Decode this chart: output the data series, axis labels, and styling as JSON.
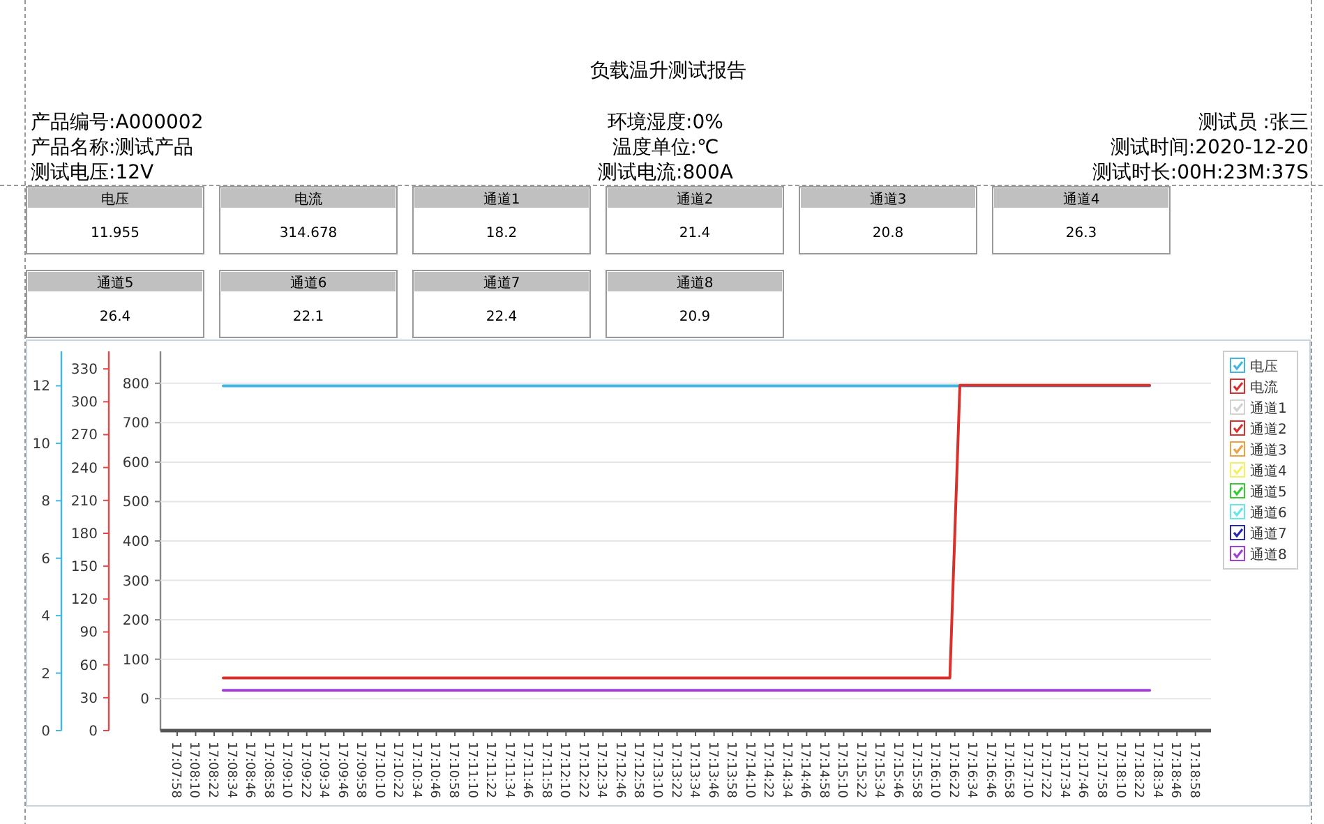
{
  "chart_data": [
    {
      "type": "other",
      "title": "负载温升测试报告",
      "annotations": [
        "产品编号:A000002",
        "环境湿度:0%",
        "测试员 :张三",
        "产品名称:测试产品",
        "温度单位:℃",
        "测试时间:2020-12-20",
        "测试电压:12V",
        "测试电流:800A",
        "测试时长:00H:23M:37S"
      ],
      "categories": [
        "电压",
        "电流",
        "通道1",
        "通道2",
        "通道3",
        "通道4",
        "通道5",
        "通道6",
        "通道7",
        "通道8"
      ],
      "values": [
        11.955,
        314.678,
        18.2,
        21.4,
        20.8,
        26.3,
        26.4,
        22.1,
        22.4,
        20.9
      ],
      "data_labels": true
    },
    {
      "type": "line",
      "legend": "top right",
      "grid": "y",
      "xlim": [
        17.12977,
        17.31891
      ],
      "xticks": [
        {
          "value": 17.13278,
          "label": "17:07:58"
        },
        {
          "value": 17.13611,
          "label": "17:08:10"
        },
        {
          "value": 17.13944,
          "label": "17:08:22"
        },
        {
          "value": 17.14278,
          "label": "17:08:34"
        },
        {
          "value": 17.14611,
          "label": "17:08:46"
        },
        {
          "value": 17.14944,
          "label": "17:08:58"
        },
        {
          "value": 17.15278,
          "label": "17:09:10"
        },
        {
          "value": 17.15611,
          "label": "17:09:22"
        },
        {
          "value": 17.15944,
          "label": "17:09:34"
        },
        {
          "value": 17.16278,
          "label": "17:09:46"
        },
        {
          "value": 17.16611,
          "label": "17:09:58"
        },
        {
          "value": 17.16944,
          "label": "17:10:10"
        },
        {
          "value": 17.17278,
          "label": "17:10:22"
        },
        {
          "value": 17.17611,
          "label": "17:10:34"
        },
        {
          "value": 17.17944,
          "label": "17:10:46"
        },
        {
          "value": 17.18278,
          "label": "17:10:58"
        },
        {
          "value": 17.18611,
          "label": "17:11:10"
        },
        {
          "value": 17.18944,
          "label": "17:11:22"
        },
        {
          "value": 17.19278,
          "label": "17:11:34"
        },
        {
          "value": 17.19611,
          "label": "17:11:46"
        },
        {
          "value": 17.19944,
          "label": "17:11:58"
        },
        {
          "value": 17.20278,
          "label": "17:12:10"
        },
        {
          "value": 17.20611,
          "label": "17:12:22"
        },
        {
          "value": 17.20944,
          "label": "17:12:34"
        },
        {
          "value": 17.21278,
          "label": "17:12:46"
        },
        {
          "value": 17.21611,
          "label": "17:12:58"
        },
        {
          "value": 17.21944,
          "label": "17:13:10"
        },
        {
          "value": 17.22278,
          "label": "17:13:22"
        },
        {
          "value": 17.22611,
          "label": "17:13:34"
        },
        {
          "value": 17.22944,
          "label": "17:13:46"
        },
        {
          "value": 17.23278,
          "label": "17:13:58"
        },
        {
          "value": 17.23611,
          "label": "17:14:10"
        },
        {
          "value": 17.23944,
          "label": "17:14:22"
        },
        {
          "value": 17.24278,
          "label": "17:14:34"
        },
        {
          "value": 17.24611,
          "label": "17:14:46"
        },
        {
          "value": 17.24944,
          "label": "17:14:58"
        },
        {
          "value": 17.25278,
          "label": "17:15:10"
        },
        {
          "value": 17.25611,
          "label": "17:15:22"
        },
        {
          "value": 17.25944,
          "label": "17:15:34"
        },
        {
          "value": 17.26278,
          "label": "17:15:46"
        },
        {
          "value": 17.26611,
          "label": "17:15:58"
        },
        {
          "value": 17.26944,
          "label": "17:16:10"
        },
        {
          "value": 17.27278,
          "label": "17:16:22"
        },
        {
          "value": 17.27611,
          "label": "17:16:34"
        },
        {
          "value": 17.27944,
          "label": "17:16:46"
        },
        {
          "value": 17.28278,
          "label": "17:16:58"
        },
        {
          "value": 17.28611,
          "label": "17:17:10"
        },
        {
          "value": 17.28944,
          "label": "17:17:22"
        },
        {
          "value": 17.29278,
          "label": "17:17:34"
        },
        {
          "value": 17.29611,
          "label": "17:17:46"
        },
        {
          "value": 17.29944,
          "label": "17:17:58"
        },
        {
          "value": 17.30278,
          "label": "17:18:10"
        },
        {
          "value": 17.30611,
          "label": "17:18:22"
        },
        {
          "value": 17.30944,
          "label": "17:18:34"
        },
        {
          "value": 17.31278,
          "label": "17:18:46"
        },
        {
          "value": 17.31611,
          "label": "17:18:58"
        }
      ],
      "ylim": [
        -81,
        881
      ],
      "yticks": [
        0,
        100,
        200,
        300,
        400,
        500,
        600,
        700,
        800
      ],
      "y2lim": [
        0,
        346
      ],
      "y2ticks": [
        0,
        30,
        60,
        90,
        120,
        150,
        180,
        210,
        240,
        270,
        300,
        330
      ],
      "y3lim": [
        0,
        13.2
      ],
      "y3ticks": [
        0,
        2,
        4,
        6,
        8,
        10,
        12
      ],
      "series": [
        {
          "name": "电压",
          "color": "#41b6e6",
          "axis": "y3",
          "x": [
            17.14107,
            17.2,
            17.30786
          ],
          "values": [
            12.0,
            12.0,
            12.0
          ]
        },
        {
          "name": "电流",
          "color": "#d9302c",
          "axis": "y2",
          "x": [
            17.14107,
            17.2719,
            17.2737,
            17.30786
          ],
          "values": [
            48,
            48,
            315,
            315
          ]
        },
        {
          "name": "通道1",
          "color": "#d3d3d3"
        },
        {
          "name": "通道2",
          "color": "#d9302c"
        },
        {
          "name": "通道3",
          "color": "#f0a040"
        },
        {
          "name": "通道4",
          "color": "#f5f060"
        },
        {
          "name": "通道5",
          "color": "#33cc33"
        },
        {
          "name": "通道6",
          "color": "#66e6ee"
        },
        {
          "name": "通道7",
          "color": "#2828b0"
        },
        {
          "name": "通道8",
          "color": "#a040d0",
          "x": [
            17.14107,
            17.30786
          ],
          "values": [
            21,
            21
          ]
        }
      ]
    }
  ]
}
